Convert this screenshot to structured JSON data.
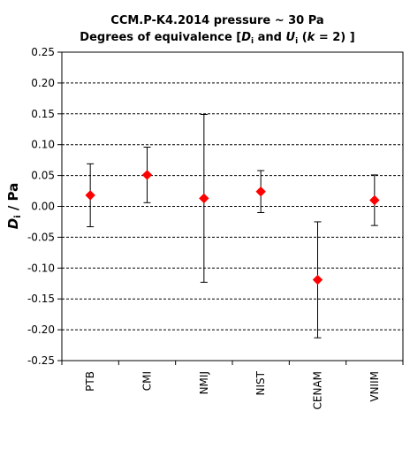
{
  "chart_data": {
    "type": "scatter",
    "title_line1": "CCM.P-K4.2014  pressure ~ 30 Pa",
    "title_line2_a": "Degrees of equivalence [",
    "title_line2_D": "D",
    "title_line2_i1": "i",
    "title_line2_mid": " and ",
    "title_line2_U": "U",
    "title_line2_i2": "i",
    "title_line2_open": " (",
    "title_line2_k": "k",
    "title_line2_end": " = 2) ]",
    "ylabel_D": "D",
    "ylabel_i": "i",
    "ylabel_rest": " / Pa",
    "ylim": [
      -0.25,
      0.25
    ],
    "yticks": [
      "0.25",
      "0.20",
      "0.15",
      "0.10",
      "0.05",
      "0.00",
      "-0.05",
      "-0.10",
      "-0.15",
      "-0.20",
      "-0.25"
    ],
    "ytick_values": [
      0.25,
      0.2,
      0.15,
      0.1,
      0.05,
      0.0,
      -0.05,
      -0.1,
      -0.15,
      -0.2,
      -0.25
    ],
    "grid": true,
    "marker_color": "#ff0000",
    "categories": [
      "PTB",
      "CMI",
      "NMIJ",
      "NIST",
      "CENAM",
      "VNIIM"
    ],
    "values": [
      0.018,
      0.051,
      0.013,
      0.024,
      -0.119,
      0.01
    ],
    "uncertainty": [
      0.051,
      0.045,
      0.136,
      0.034,
      0.094,
      0.041
    ]
  }
}
